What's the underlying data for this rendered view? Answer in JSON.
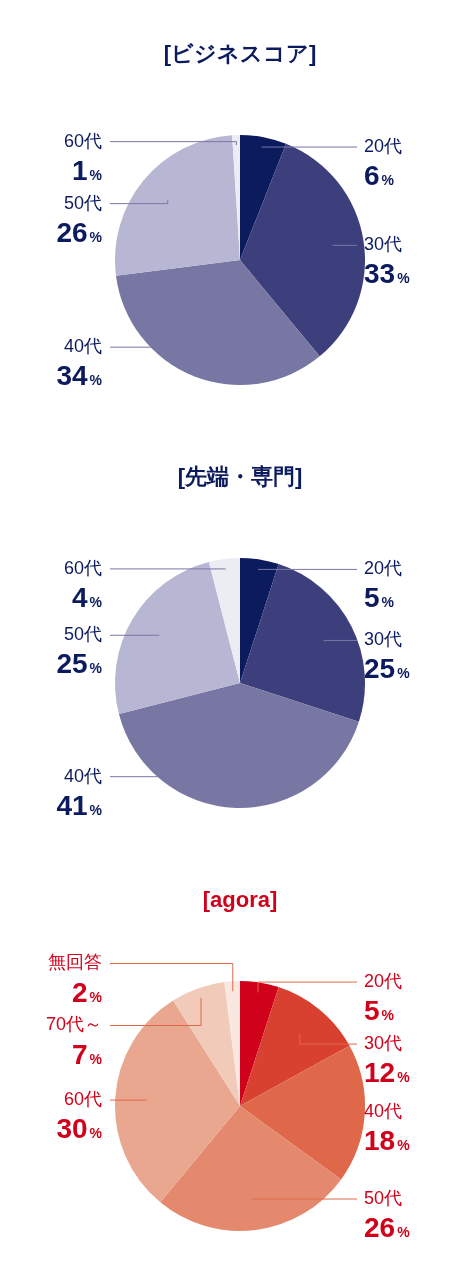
{
  "chart_data": [
    {
      "type": "pie",
      "title": "[ビジネスコア]",
      "categories": [
        "20代",
        "30代",
        "40代",
        "50代",
        "60代"
      ],
      "values": [
        6,
        33,
        34,
        26,
        1
      ],
      "value_labels": [
        "6%",
        "33%",
        "34%",
        "26%",
        "1%"
      ],
      "colors": [
        "#0c1a5e",
        "#3c3f7b",
        "#7876a3",
        "#b8b7d3",
        "#ececf3"
      ]
    },
    {
      "type": "pie",
      "title": "[先端・専門]",
      "categories": [
        "20代",
        "30代",
        "40代",
        "50代",
        "60代"
      ],
      "values": [
        5,
        25,
        41,
        25,
        4
      ],
      "value_labels": [
        "5%",
        "25%",
        "41%",
        "25%",
        "4%"
      ],
      "colors": [
        "#0c1a5e",
        "#3c3f7b",
        "#7876a3",
        "#b8b7d3",
        "#ececf3"
      ]
    },
    {
      "type": "pie",
      "title": "[agora]",
      "categories": [
        "20代",
        "30代",
        "40代",
        "50代",
        "60代",
        "70代～",
        "無回答"
      ],
      "values": [
        5,
        12,
        18,
        26,
        30,
        7,
        2
      ],
      "value_labels": [
        "5%",
        "12%",
        "18%",
        "26%",
        "30%",
        "7%",
        "2%"
      ],
      "colors": [
        "#d0021b",
        "#d8412f",
        "#df684b",
        "#e5896e",
        "#eaa78f",
        "#f2cab9",
        "#f9e7e0"
      ]
    }
  ]
}
